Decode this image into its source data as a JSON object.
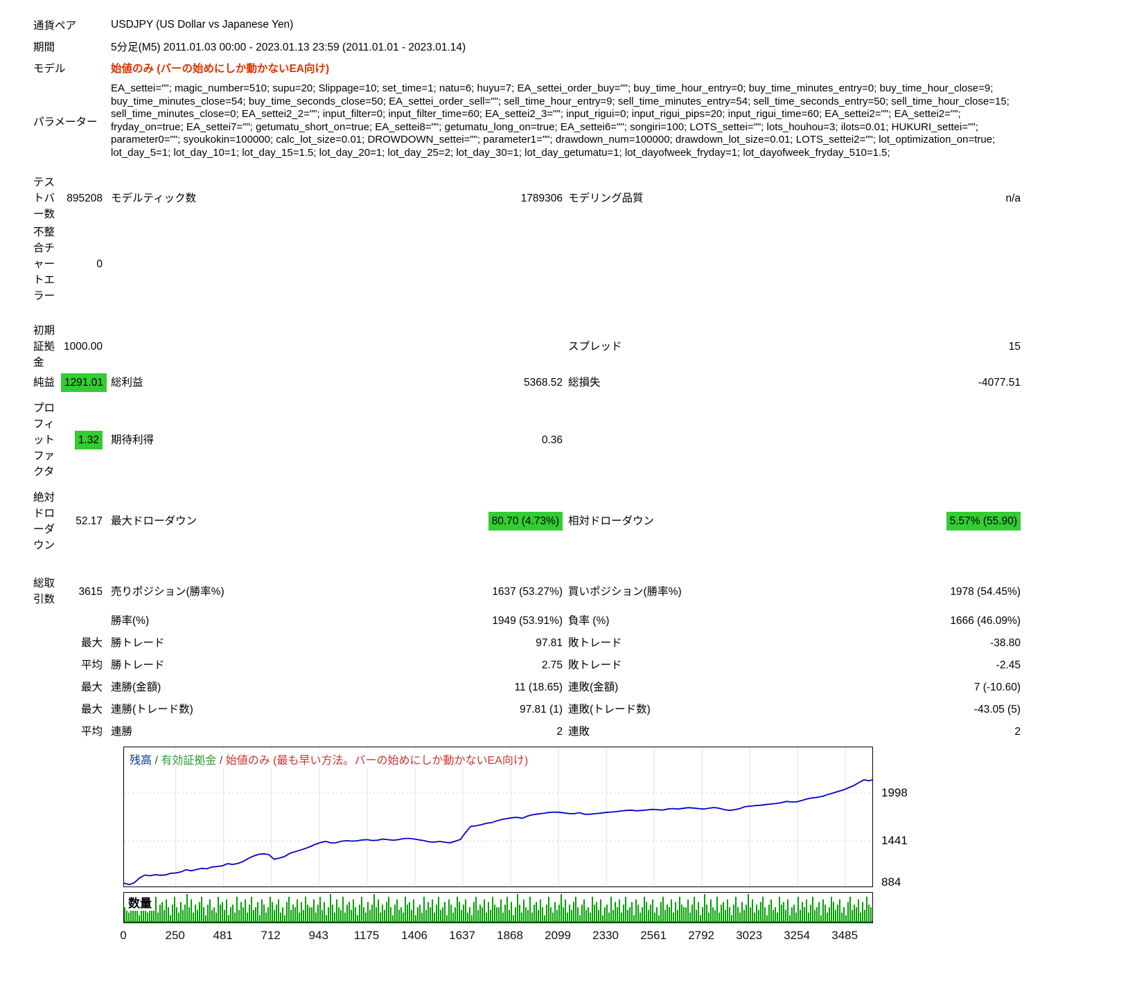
{
  "header": {
    "rows": [
      {
        "label": "通貨ペア",
        "value": "USDJPY (US Dollar vs Japanese Yen)"
      },
      {
        "label": "期間",
        "value": "5分足(M5) 2011.01.03 00:00 - 2023.01.13 23:59 (2011.01.01 - 2023.01.14)"
      },
      {
        "label": "モデル",
        "value": "始値のみ (バーの始めにしか動かないEA向け)"
      },
      {
        "label": "パラメーター",
        "value": "EA_settei=\"\"; magic_number=510; supu=20; Slippage=10; set_time=1; natu=6; huyu=7; EA_settei_order_buy=\"\"; buy_time_hour_entry=0; buy_time_minutes_entry=0; buy_time_hour_close=9; buy_time_minutes_close=54; buy_time_seconds_close=50; EA_settei_order_sell=\"\"; sell_time_hour_entry=9; sell_time_minutes_entry=54; sell_time_seconds_entry=50; sell_time_hour_close=15; sell_time_minutes_close=0; EA_settei2_2=\"\"; input_filter=0; input_filter_time=60; EA_settei2_3=\"\"; input_rigui=0; input_rigui_pips=20; input_rigui_time=60; EA_settei2=\"\"; EA_settei2=\"\"; fryday_on=true; EA_settei7=\"\"; getumatu_short_on=true; EA_settei8=\"\"; getumatu_long_on=true; EA_settei6=\"\"; songiri=100; LOTS_settei=\"\"; lots_houhou=3; ilots=0.01; HUKURI_settei=\"\"; parameter0=\"\"; syoukokin=100000; calc_lot_size=0.01; DROWDOWN_settei=\"\"; parameter1=\"\"; drawdown_num=100000; drawdown_lot_size=0.01; LOTS_settei2=\"\"; lot_optimization_on=true; lot_day_5=1; lot_day_10=1; lot_day_15=1.5; lot_day_20=1; lot_day_25=2; lot_day_30=1; lot_day_getumatu=1; lot_dayofweek_fryday=1; lot_dayofweek_fryday_510=1.5;"
      }
    ]
  },
  "stats": {
    "rows": [
      {
        "l1": "テストバー数",
        "v1": "895208",
        "l2": "モデルティック数",
        "v2": "1789306",
        "l3": "モデリング品質",
        "v3": "n/a"
      },
      {
        "l1": "不整合チャートエラー",
        "v1": "0",
        "l2": "",
        "v2": "",
        "l3": "",
        "v3": ""
      },
      {
        "l1": "初期証拠金",
        "v1": "1000.00",
        "l2": "",
        "v2": "",
        "l3": "スプレッド",
        "v3": "15"
      },
      {
        "l1": "純益",
        "v1": "1291.01",
        "l2": "総利益",
        "v2": "5368.52",
        "l3": "総損失",
        "v3": "-4077.51"
      },
      {
        "l1": "プロフィットファクタ",
        "v1": "1.32",
        "l2": "期待利得",
        "v2": "0.36",
        "l3": "",
        "v3": ""
      },
      {
        "l1": "絶対ドローダウン",
        "v1": "52.17",
        "l2": "最大ドローダウン",
        "v2": "80.70 (4.73%)",
        "l3": "相対ドローダウン",
        "v3": "5.57% (55.90)"
      },
      {
        "l1": "総取引数",
        "v1": "3615",
        "l2": "売りポジション(勝率%)",
        "v2": "1637 (53.27%)",
        "l3": "買いポジション(勝率%)",
        "v3": "1978 (54.45%)"
      },
      {
        "l1": "",
        "v1": "",
        "l2": "勝率(%)",
        "v2": "1949 (53.91%)",
        "l3": "負率 (%)",
        "v3": "1666 (46.09%)"
      },
      {
        "l1": "",
        "v1": "最大",
        "l2": "勝トレード",
        "v2": "97.81",
        "l3": "敗トレード",
        "v3": "-38.80"
      },
      {
        "l1": "",
        "v1": "平均",
        "l2": "勝トレード",
        "v2": "2.75",
        "l3": "敗トレード",
        "v3": "-2.45"
      },
      {
        "l1": "",
        "v1": "最大",
        "l2": "連勝(金額)",
        "v2": "11 (18.65)",
        "l3": "連敗(金額)",
        "v3": "7 (-10.60)"
      },
      {
        "l1": "",
        "v1": "最大",
        "l2": "連勝(トレード数)",
        "v2": "97.81 (1)",
        "l3": "連敗(トレード数)",
        "v3": "-43.05 (5)"
      },
      {
        "l1": "",
        "v1": "平均",
        "l2": "連勝",
        "v2": "2",
        "l3": "連敗",
        "v3": "2"
      }
    ]
  },
  "colors": {
    "highlight_green": "#33cc33",
    "model_text_red": "#dd3300"
  },
  "chart_data": {
    "type": "line",
    "title": "",
    "xlabel": "",
    "ylabel": "",
    "x_max": 3615,
    "x_ticks": [
      0,
      250,
      481,
      712,
      943,
      1175,
      1406,
      1637,
      1868,
      2099,
      2330,
      2561,
      2792,
      3023,
      3254,
      3485
    ],
    "y_ticks": [
      1998,
      1441,
      884
    ],
    "value_range": [
      916,
      2527
    ],
    "legend": {
      "balance": "残高",
      "separator": "/",
      "equity": "有効証拠金",
      "model": "始値のみ (最も早い方法。バーの始めにしか動かないEA向け)"
    },
    "colors": {
      "balance": "#0000c8",
      "volume": "#00a000",
      "grid": "#e3e3e3",
      "hgrid": "#cfcfcf"
    },
    "series": [
      {
        "name": "残高",
        "x_step": 25,
        "values": [
          955,
          938,
          960,
          1015,
          1048,
          1040,
          1052,
          1046,
          1050,
          1068,
          1072,
          1085,
          1110,
          1098,
          1112,
          1126,
          1120,
          1142,
          1148,
          1155,
          1180,
          1172,
          1182,
          1205,
          1240,
          1268,
          1288,
          1294,
          1285,
          1230,
          1245,
          1262,
          1298,
          1318,
          1335,
          1355,
          1378,
          1405,
          1425,
          1438,
          1420,
          1422,
          1440,
          1446,
          1442,
          1444,
          1455,
          1458,
          1448,
          1452,
          1465,
          1458,
          1452,
          1458,
          1470,
          1473,
          1466,
          1456,
          1446,
          1432,
          1430,
          1438,
          1428,
          1422,
          1440,
          1460,
          1540,
          1612,
          1618,
          1630,
          1648,
          1655,
          1675,
          1692,
          1702,
          1712,
          1716,
          1706,
          1732,
          1746,
          1755,
          1762,
          1772,
          1777,
          1775,
          1768,
          1760,
          1758,
          1770,
          1752,
          1752,
          1758,
          1764,
          1772,
          1777,
          1782,
          1790,
          1796,
          1799,
          1792,
          1796,
          1802,
          1808,
          1806,
          1800,
          1812,
          1818,
          1812,
          1820,
          1828,
          1824,
          1818,
          1812,
          1822,
          1830,
          1822,
          1806,
          1796,
          1806,
          1818,
          1840,
          1846,
          1852,
          1856,
          1864,
          1870,
          1877,
          1886,
          1900,
          1894,
          1896,
          1912,
          1930,
          1941,
          1948,
          1960,
          1980,
          1998,
          2016,
          2034,
          2058,
          2084,
          2118,
          2150,
          2138,
          2152
        ]
      }
    ],
    "volume_label": "数量",
    "volume_pattern": [
      0.5,
      0.8,
      0.3,
      0.6,
      0.9,
      0.4,
      0.7,
      0.2,
      0.5,
      1.0,
      0.6,
      0.3,
      0.8,
      0.5,
      0.4,
      0.9,
      0.3,
      0.6,
      0.7,
      0.4,
      0.8,
      0.5,
      0.2,
      0.6,
      0.9,
      0.5,
      0.3,
      0.7,
      0.4,
      0.6,
      1.0,
      0.5,
      0.8,
      0.3,
      0.6,
      0.4,
      0.7,
      0.9,
      0.5,
      0.2,
      0.6,
      0.8,
      0.4,
      0.5,
      0.3,
      0.9,
      0.6,
      0.7,
      0.4,
      0.8,
      0.2,
      0.5,
      0.6,
      0.3,
      0.9,
      0.4,
      0.7,
      0.5,
      0.8,
      0.3,
      0.6,
      0.9,
      0.4,
      0.5,
      0.7,
      0.2,
      0.8,
      0.6,
      0.3,
      0.5,
      0.9,
      0.7,
      0.4,
      0.6,
      0.8,
      0.3,
      0.5,
      0.2,
      0.7,
      0.9,
      0.4,
      0.6,
      0.5,
      0.8,
      0.3,
      0.7,
      0.4,
      0.9,
      0.6,
      0.5
    ]
  }
}
